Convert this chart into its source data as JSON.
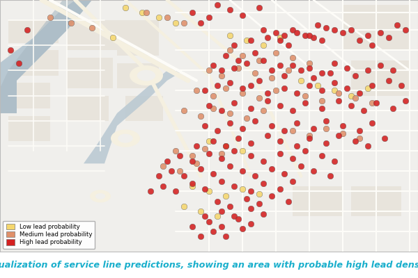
{
  "title": "Visualization of service line predictions, showing an area with probable high lead density.",
  "title_color": "#1AAFCC",
  "title_fontsize": 9.2,
  "map_bg": "#F0EFEC",
  "block_color": "#E8E4DC",
  "road_color": "#FDFCF8",
  "road_major_color": "#F5F0E0",
  "water_color": "#C5CFD6",
  "river_color": "#B8C8D2",
  "map_border_color": "#BBBBBB",
  "legend_items": [
    {
      "label": "Low lead probability",
      "color": "#F5D76E"
    },
    {
      "label": "Medium lead probability",
      "color": "#E0906A"
    },
    {
      "label": "High lead probability",
      "color": "#D42020"
    }
  ],
  "dot_size": 38,
  "dot_alpha": 0.88,
  "dot_edge_color": "#555555",
  "dot_edge_width": 0.3,
  "high_lead_color": "#D42020",
  "medium_lead_color": "#E0906A",
  "low_lead_color": "#F5D76E",
  "high_points_x": [
    0.065,
    0.025,
    0.045,
    0.52,
    0.46,
    0.5,
    0.55,
    0.58,
    0.62,
    0.48,
    0.63,
    0.68,
    0.6,
    0.56,
    0.64,
    0.66,
    0.7,
    0.73,
    0.67,
    0.71,
    0.75,
    0.69,
    0.76,
    0.8,
    0.74,
    0.78,
    0.82,
    0.77,
    0.84,
    0.88,
    0.86,
    0.91,
    0.93,
    0.89,
    0.95,
    0.97,
    0.54,
    0.57,
    0.61,
    0.51,
    0.53,
    0.59,
    0.56,
    0.63,
    0.67,
    0.65,
    0.7,
    0.72,
    0.68,
    0.74,
    0.77,
    0.8,
    0.83,
    0.75,
    0.79,
    0.85,
    0.88,
    0.91,
    0.94,
    0.52,
    0.49,
    0.55,
    0.58,
    0.62,
    0.6,
    0.64,
    0.68,
    0.71,
    0.74,
    0.77,
    0.8,
    0.83,
    0.86,
    0.89,
    0.93,
    0.96,
    0.5,
    0.53,
    0.56,
    0.6,
    0.64,
    0.67,
    0.7,
    0.73,
    0.77,
    0.81,
    0.84,
    0.87,
    0.9,
    0.94,
    0.97,
    0.49,
    0.52,
    0.55,
    0.58,
    0.61,
    0.65,
    0.68,
    0.71,
    0.75,
    0.78,
    0.82,
    0.86,
    0.89,
    0.47,
    0.51,
    0.54,
    0.57,
    0.6,
    0.64,
    0.67,
    0.71,
    0.74,
    0.78,
    0.81,
    0.85,
    0.88,
    0.92,
    0.4,
    0.43,
    0.46,
    0.5,
    0.53,
    0.56,
    0.6,
    0.63,
    0.67,
    0.7,
    0.73,
    0.77,
    0.8,
    0.38,
    0.41,
    0.44,
    0.48,
    0.51,
    0.55,
    0.58,
    0.61,
    0.65,
    0.68,
    0.72,
    0.75,
    0.79,
    0.36,
    0.39,
    0.42,
    0.46,
    0.49,
    0.53,
    0.56,
    0.6,
    0.63,
    0.67,
    0.7,
    0.52,
    0.55,
    0.59,
    0.62,
    0.65,
    0.69,
    0.49,
    0.53,
    0.56,
    0.6,
    0.63,
    0.46,
    0.5,
    0.53,
    0.57,
    0.6,
    0.48,
    0.51,
    0.54,
    0.58
  ],
  "high_points_y": [
    0.88,
    0.8,
    0.75,
    0.98,
    0.95,
    0.93,
    0.96,
    0.94,
    0.97,
    0.91,
    0.88,
    0.86,
    0.84,
    0.82,
    0.85,
    0.87,
    0.88,
    0.86,
    0.84,
    0.87,
    0.85,
    0.82,
    0.9,
    0.88,
    0.86,
    0.89,
    0.87,
    0.84,
    0.88,
    0.86,
    0.84,
    0.87,
    0.85,
    0.82,
    0.9,
    0.88,
    0.78,
    0.76,
    0.79,
    0.74,
    0.72,
    0.75,
    0.73,
    0.76,
    0.74,
    0.72,
    0.74,
    0.72,
    0.7,
    0.73,
    0.71,
    0.75,
    0.73,
    0.69,
    0.71,
    0.7,
    0.72,
    0.74,
    0.72,
    0.66,
    0.64,
    0.67,
    0.65,
    0.68,
    0.66,
    0.63,
    0.65,
    0.63,
    0.66,
    0.64,
    0.67,
    0.65,
    0.63,
    0.66,
    0.68,
    0.66,
    0.58,
    0.56,
    0.59,
    0.57,
    0.6,
    0.58,
    0.56,
    0.59,
    0.57,
    0.6,
    0.58,
    0.56,
    0.59,
    0.57,
    0.6,
    0.5,
    0.48,
    0.51,
    0.49,
    0.52,
    0.5,
    0.48,
    0.51,
    0.49,
    0.52,
    0.5,
    0.48,
    0.51,
    0.42,
    0.44,
    0.42,
    0.45,
    0.43,
    0.46,
    0.44,
    0.42,
    0.45,
    0.43,
    0.46,
    0.44,
    0.42,
    0.45,
    0.36,
    0.38,
    0.36,
    0.39,
    0.37,
    0.4,
    0.38,
    0.36,
    0.39,
    0.37,
    0.4,
    0.38,
    0.36,
    0.3,
    0.32,
    0.3,
    0.33,
    0.31,
    0.34,
    0.32,
    0.3,
    0.33,
    0.31,
    0.34,
    0.32,
    0.3,
    0.24,
    0.26,
    0.24,
    0.27,
    0.25,
    0.28,
    0.26,
    0.24,
    0.27,
    0.25,
    0.28,
    0.2,
    0.18,
    0.21,
    0.19,
    0.22,
    0.2,
    0.14,
    0.16,
    0.14,
    0.17,
    0.15,
    0.1,
    0.12,
    0.1,
    0.13,
    0.11,
    0.06,
    0.08,
    0.06,
    0.09
  ],
  "medium_points_x": [
    0.12,
    0.17,
    0.22,
    0.35,
    0.4,
    0.44,
    0.55,
    0.58,
    0.62,
    0.66,
    0.7,
    0.74,
    0.5,
    0.53,
    0.57,
    0.61,
    0.65,
    0.69,
    0.47,
    0.51,
    0.54,
    0.58,
    0.62,
    0.66,
    0.44,
    0.48,
    0.51,
    0.55,
    0.59,
    0.63,
    0.73,
    0.77,
    0.81,
    0.85,
    0.89,
    0.7,
    0.74,
    0.78,
    0.82,
    0.86,
    0.42,
    0.46,
    0.49,
    0.53,
    0.39,
    0.43,
    0.47
  ],
  "medium_points_y": [
    0.93,
    0.91,
    0.89,
    0.95,
    0.93,
    0.91,
    0.8,
    0.78,
    0.76,
    0.79,
    0.77,
    0.75,
    0.72,
    0.7,
    0.73,
    0.71,
    0.69,
    0.72,
    0.64,
    0.62,
    0.65,
    0.63,
    0.61,
    0.64,
    0.56,
    0.54,
    0.57,
    0.55,
    0.53,
    0.56,
    0.62,
    0.6,
    0.63,
    0.61,
    0.59,
    0.48,
    0.46,
    0.49,
    0.47,
    0.45,
    0.4,
    0.38,
    0.41,
    0.39,
    0.34,
    0.32,
    0.35
  ],
  "low_points_x": [
    0.3,
    0.34,
    0.38,
    0.42,
    0.27,
    0.55,
    0.59,
    0.63,
    0.67,
    0.72,
    0.76,
    0.8,
    0.84,
    0.88,
    0.5,
    0.54,
    0.58,
    0.46,
    0.5,
    0.54,
    0.58,
    0.62,
    0.44,
    0.48,
    0.52
  ],
  "low_points_y": [
    0.97,
    0.95,
    0.93,
    0.91,
    0.85,
    0.86,
    0.84,
    0.82,
    0.85,
    0.68,
    0.66,
    0.64,
    0.62,
    0.65,
    0.44,
    0.42,
    0.4,
    0.26,
    0.24,
    0.22,
    0.25,
    0.23,
    0.18,
    0.16,
    0.14
  ]
}
